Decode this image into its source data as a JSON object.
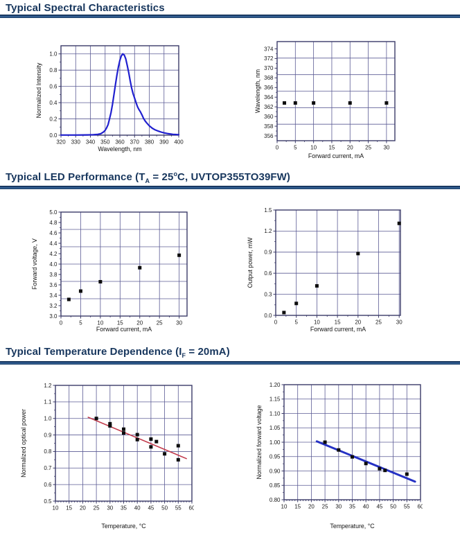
{
  "page": {
    "background": "#ffffff",
    "accent": "#17365d"
  },
  "sections": [
    {
      "title_parts": [
        {
          "t": "Typical Spectral Characteristics"
        }
      ]
    },
    {
      "title_parts": [
        {
          "t": "Typical LED Performance (T"
        },
        {
          "t": "A",
          "s": "sub"
        },
        {
          "t": " = 25"
        },
        {
          "t": "o",
          "s": "sup"
        },
        {
          "t": "C, UVTOP355TO39FW)"
        }
      ]
    },
    {
      "title_parts": [
        {
          "t": "Typical Temperature Dependence (I"
        },
        {
          "t": "F",
          "s": "sub"
        },
        {
          "t": " = 20mA)"
        }
      ]
    }
  ],
  "chart_style": {
    "grid": "#5b5b94",
    "border": "#3a3a68",
    "marker": "#0d0d0d",
    "tick_text": "#1a1a1a"
  },
  "chart_data": [
    {
      "type": "line",
      "xlabel": "Wavelength, nm",
      "ylabel": "Normalized Intensity",
      "xlim": [
        320,
        400
      ],
      "ylim": [
        0,
        1.1
      ],
      "xticks": [
        "320",
        "330",
        "340",
        "350",
        "360",
        "370",
        "380",
        "390",
        "400"
      ],
      "yticks": [
        "0.0",
        "0.2",
        "0.4",
        "0.6",
        "0.8",
        "1.0"
      ],
      "line_color": "#2020cf",
      "peak_wavelength_nm": 362,
      "curve": [
        [
          320,
          0.002
        ],
        [
          330,
          0.002
        ],
        [
          338,
          0.003
        ],
        [
          342,
          0.005
        ],
        [
          345,
          0.01
        ],
        [
          347,
          0.018
        ],
        [
          349,
          0.04
        ],
        [
          350,
          0.06
        ],
        [
          351,
          0.09
        ],
        [
          352,
          0.13
        ],
        [
          353,
          0.2
        ],
        [
          354,
          0.28
        ],
        [
          355,
          0.38
        ],
        [
          356,
          0.5
        ],
        [
          357,
          0.62
        ],
        [
          358,
          0.74
        ],
        [
          359,
          0.84
        ],
        [
          360,
          0.92
        ],
        [
          361,
          0.975
        ],
        [
          362,
          1.0
        ],
        [
          363,
          0.985
        ],
        [
          364,
          0.94
        ],
        [
          365,
          0.86
        ],
        [
          366,
          0.77
        ],
        [
          367,
          0.67
        ],
        [
          368,
          0.58
        ],
        [
          369,
          0.51
        ],
        [
          370,
          0.455
        ],
        [
          371,
          0.4
        ],
        [
          372,
          0.35
        ],
        [
          373,
          0.315
        ],
        [
          374,
          0.285
        ],
        [
          375,
          0.25
        ],
        [
          376,
          0.21
        ],
        [
          377,
          0.18
        ],
        [
          378,
          0.155
        ],
        [
          379,
          0.135
        ],
        [
          380,
          0.115
        ],
        [
          382,
          0.085
        ],
        [
          384,
          0.065
        ],
        [
          386,
          0.05
        ],
        [
          388,
          0.038
        ],
        [
          390,
          0.028
        ],
        [
          393,
          0.018
        ],
        [
          396,
          0.01
        ],
        [
          400,
          0.006
        ]
      ]
    },
    {
      "type": "scatter",
      "xlabel": "Forward current, mA",
      "ylabel": "Wavelength, nm",
      "xlim": [
        0,
        32.3
      ],
      "ylim": [
        355,
        375.5
      ],
      "xticks": [
        "0",
        "5",
        "10",
        "15",
        "20",
        "25",
        "30"
      ],
      "yticks": [
        "356",
        "358",
        "360",
        "362",
        "364",
        "366",
        "368",
        "370",
        "372",
        "374"
      ],
      "grid_y_div": 6,
      "points": [
        [
          2,
          362.8
        ],
        [
          5,
          362.8
        ],
        [
          10,
          362.8
        ],
        [
          20,
          362.8
        ],
        [
          30,
          362.8
        ]
      ]
    },
    {
      "type": "scatter",
      "xlabel": "Forward current, mA",
      "ylabel": "Forward voltage, V",
      "xlim": [
        0,
        32
      ],
      "ylim": [
        3.0,
        5.0
      ],
      "xticks": [
        "0",
        "5",
        "10",
        "15",
        "20",
        "25",
        "30"
      ],
      "yticks": [
        "3.0",
        "3.2",
        "3.4",
        "3.6",
        "3.8",
        "4.0",
        "4.2",
        "4.4",
        "4.6",
        "4.8",
        "5.0"
      ],
      "grid_y_div": 6,
      "points": [
        [
          2,
          3.32
        ],
        [
          5,
          3.48
        ],
        [
          10,
          3.66
        ],
        [
          20,
          3.93
        ],
        [
          30,
          4.17
        ]
      ]
    },
    {
      "type": "scatter",
      "xlabel": "Forward current, mA",
      "ylabel": "Output power, mW",
      "xlim": [
        0,
        30.3
      ],
      "ylim": [
        0,
        1.5
      ],
      "xticks": [
        "0",
        "5",
        "10",
        "15",
        "20",
        "25",
        "30"
      ],
      "yticks": [
        "0.0",
        "0.3",
        "0.6",
        "0.9",
        "1.2",
        "1.5"
      ],
      "points": [
        [
          2,
          0.04
        ],
        [
          5,
          0.17
        ],
        [
          10,
          0.42
        ],
        [
          20,
          0.88
        ],
        [
          30,
          1.31
        ]
      ]
    },
    {
      "type": "scatter",
      "xlabel": "Temperature, °C",
      "ylabel": "Normalized optical power",
      "xlim": [
        10,
        60
      ],
      "ylim": [
        0.5,
        1.2
      ],
      "xticks": [
        "10",
        "15",
        "20",
        "25",
        "30",
        "35",
        "40",
        "45",
        "50",
        "55",
        "60"
      ],
      "yticks": [
        "0.5",
        "0.6",
        "0.7",
        "0.8",
        "0.9",
        "1.0",
        "1.1",
        "1.2"
      ],
      "minor_x_step": 1,
      "points": [
        [
          25,
          1.0
        ],
        [
          30,
          0.968
        ],
        [
          30,
          0.955
        ],
        [
          35,
          0.935
        ],
        [
          35,
          0.912
        ],
        [
          40,
          0.902
        ],
        [
          40,
          0.872
        ],
        [
          45,
          0.875
        ],
        [
          45,
          0.828
        ],
        [
          47,
          0.86
        ],
        [
          50,
          0.786
        ],
        [
          55,
          0.835
        ],
        [
          55,
          0.75
        ]
      ],
      "trend": {
        "from": [
          22,
          1.007
        ],
        "to": [
          58,
          0.757
        ],
        "color": "#c23b4c",
        "width": 1.6
      }
    },
    {
      "type": "scatter",
      "xlabel": "Temperature, °C",
      "ylabel": "Normalized forward voltage",
      "xlim": [
        10,
        60
      ],
      "ylim": [
        0.8,
        1.2
      ],
      "xticks": [
        "10",
        "15",
        "20",
        "25",
        "30",
        "35",
        "40",
        "45",
        "50",
        "55",
        "60"
      ],
      "yticks": [
        "0.80",
        "0.85",
        "0.90",
        "0.95",
        "1.00",
        "1.05",
        "1.10",
        "1.15",
        "1.20"
      ],
      "minor_x_step": 1,
      "points": [
        [
          25,
          1.0
        ],
        [
          30,
          0.973
        ],
        [
          35,
          0.949
        ],
        [
          40,
          0.926
        ],
        [
          45,
          0.908
        ],
        [
          47,
          0.902
        ],
        [
          55,
          0.889
        ]
      ],
      "trend": {
        "from": [
          22,
          1.003
        ],
        "to": [
          58,
          0.863
        ],
        "color": "#2531c4",
        "width": 3
      }
    }
  ]
}
